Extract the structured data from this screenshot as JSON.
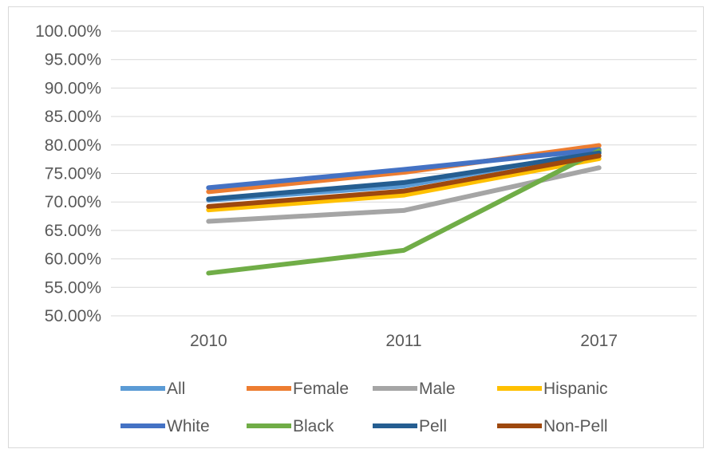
{
  "chart_data": {
    "type": "line",
    "categories": [
      "2010",
      "2011",
      "2017"
    ],
    "ylim": [
      0.5,
      1.0
    ],
    "ytick_labels": [
      "100.00%",
      "95.00%",
      "90.00%",
      "85.00%",
      "80.00%",
      "75.00%",
      "70.00%",
      "65.00%",
      "60.00%",
      "55.00%",
      "50.00%"
    ],
    "grid": true,
    "legend_position": "bottom",
    "series": [
      {
        "name": "All",
        "color": "#5b9bd5",
        "values": [
          0.703,
          0.728,
          0.789
        ]
      },
      {
        "name": "Female",
        "color": "#ed7d31",
        "values": [
          0.718,
          0.752,
          0.799
        ]
      },
      {
        "name": "Male",
        "color": "#a5a5a5",
        "values": [
          0.666,
          0.685,
          0.76
        ]
      },
      {
        "name": "Hispanic",
        "color": "#ffc000",
        "values": [
          0.686,
          0.712,
          0.776
        ]
      },
      {
        "name": "White",
        "color": "#4472c4",
        "values": [
          0.725,
          0.757,
          0.792
        ]
      },
      {
        "name": "Black",
        "color": "#70ad47",
        "values": [
          0.575,
          0.615,
          0.79
        ]
      },
      {
        "name": "Pell",
        "color": "#255e91",
        "values": [
          0.705,
          0.734,
          0.786
        ]
      },
      {
        "name": "Non-Pell",
        "color": "#9e480e",
        "values": [
          0.692,
          0.719,
          0.781
        ]
      }
    ]
  }
}
